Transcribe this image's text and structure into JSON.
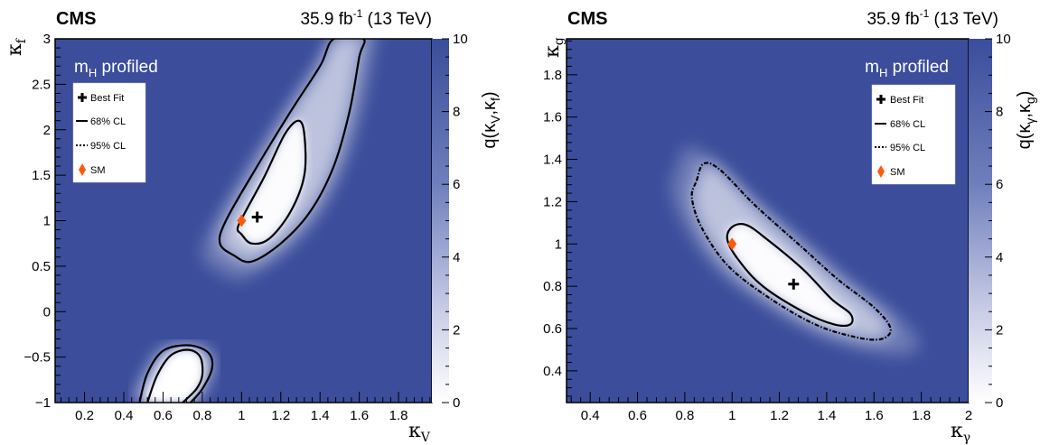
{
  "figure": {
    "experiment": "CMS",
    "lumi_prefix": "35.9 fb",
    "lumi_exp": "-1",
    "lumi_suffix": " (13 TeV)",
    "profiled_prefix": "m",
    "profiled_sub": "H",
    "profiled_suffix": " profiled",
    "legend": {
      "best_fit": "Best Fit",
      "cl68": "68% CL",
      "cl95": "95% CL",
      "sm": "SM"
    },
    "colors": {
      "background": "#3b4d9b",
      "sm_marker": "#ff5a0a",
      "contour": "#000000"
    }
  },
  "chart_data": [
    {
      "type": "heatmap",
      "xlabel_sym": "κ",
      "xlabel_sub": "V",
      "ylabel_sym": "κ",
      "ylabel_sub": "f",
      "zlabel_prefix": "q(κ",
      "zlabel_sub1": "V",
      "zlabel_mid": ",κ",
      "zlabel_sub2": "f",
      "zlabel_suffix": ")",
      "xlim": [
        0.05,
        1.97
      ],
      "ylim": [
        -1,
        3
      ],
      "zlim": [
        0,
        10
      ],
      "xticks": [
        "0.2",
        "0.4",
        "0.6",
        "0.8",
        "1",
        "1.2",
        "1.4",
        "1.6",
        "1.8"
      ],
      "yticks": [
        "−1",
        "−0.5",
        "0",
        "0.5",
        "1",
        "1.5",
        "2",
        "2.5",
        "3"
      ],
      "zticks": [
        "0",
        "2",
        "4",
        "6",
        "8",
        "10"
      ],
      "best_fit": [
        1.08,
        1.04
      ],
      "sm": [
        1.0,
        1.0
      ],
      "contour_68": [
        [
          1.0,
          0.85
        ],
        [
          1.05,
          0.75
        ],
        [
          1.14,
          0.8
        ],
        [
          1.25,
          1.1
        ],
        [
          1.32,
          1.5
        ],
        [
          1.32,
          1.95
        ],
        [
          1.29,
          2.1
        ],
        [
          1.22,
          1.95
        ],
        [
          1.12,
          1.5
        ],
        [
          1.02,
          1.1
        ],
        [
          0.98,
          0.92
        ],
        [
          1.0,
          0.85
        ]
      ],
      "contour_95": [
        [
          0.96,
          0.62
        ],
        [
          1.05,
          0.55
        ],
        [
          1.2,
          0.75
        ],
        [
          1.35,
          1.1
        ],
        [
          1.47,
          1.6
        ],
        [
          1.55,
          2.2
        ],
        [
          1.6,
          2.8
        ],
        [
          1.62,
          3.0
        ],
        [
          1.47,
          3.0
        ],
        [
          1.4,
          2.7
        ],
        [
          1.25,
          2.2
        ],
        [
          1.08,
          1.6
        ],
        [
          0.92,
          1.0
        ],
        [
          0.89,
          0.75
        ],
        [
          0.96,
          0.62
        ]
      ],
      "contour_68_lower": [
        [
          0.52,
          -1.0
        ],
        [
          0.57,
          -0.7
        ],
        [
          0.64,
          -0.48
        ],
        [
          0.73,
          -0.42
        ],
        [
          0.79,
          -0.5
        ],
        [
          0.8,
          -0.7
        ],
        [
          0.77,
          -0.85
        ],
        [
          0.7,
          -1.0
        ]
      ],
      "contour_95_lower": [
        [
          0.48,
          -1.0
        ],
        [
          0.52,
          -0.68
        ],
        [
          0.6,
          -0.43
        ],
        [
          0.73,
          -0.37
        ],
        [
          0.83,
          -0.45
        ],
        [
          0.85,
          -0.62
        ],
        [
          0.8,
          -0.85
        ],
        [
          0.74,
          -1.0
        ]
      ]
    },
    {
      "type": "heatmap",
      "xlabel_sym": "κ",
      "xlabel_sub": "γ",
      "ylabel_sym": "κ",
      "ylabel_sub": "g",
      "zlabel_prefix": "q(κ",
      "zlabel_sub1": "γ",
      "zlabel_mid": ",κ",
      "zlabel_sub2": "g",
      "zlabel_suffix": ")",
      "xlim": [
        0.3,
        2.0
      ],
      "ylim": [
        0.25,
        1.97
      ],
      "zlim": [
        0,
        10
      ],
      "xticks": [
        "0.4",
        "0.6",
        "0.8",
        "1",
        "1.2",
        "1.4",
        "1.6",
        "1.8",
        "2"
      ],
      "yticks": [
        "0.4",
        "0.6",
        "0.8",
        "1",
        "1.2",
        "1.4",
        "1.6",
        "1.8"
      ],
      "zticks": [
        "0",
        "2",
        "4",
        "6",
        "8",
        "10"
      ],
      "best_fit": [
        1.26,
        0.81
      ],
      "sm": [
        1.0,
        1.0
      ],
      "contour_68": [
        [
          0.98,
          1.02
        ],
        [
          1.0,
          1.08
        ],
        [
          1.06,
          1.09
        ],
        [
          1.15,
          1.02
        ],
        [
          1.3,
          0.88
        ],
        [
          1.42,
          0.74
        ],
        [
          1.5,
          0.67
        ],
        [
          1.5,
          0.62
        ],
        [
          1.43,
          0.62
        ],
        [
          1.3,
          0.68
        ],
        [
          1.13,
          0.8
        ],
        [
          1.03,
          0.92
        ],
        [
          0.98,
          1.02
        ]
      ],
      "contour_95": [
        [
          0.85,
          1.3
        ],
        [
          0.88,
          1.38
        ],
        [
          0.95,
          1.35
        ],
        [
          1.1,
          1.18
        ],
        [
          1.3,
          0.98
        ],
        [
          1.45,
          0.83
        ],
        [
          1.6,
          0.7
        ],
        [
          1.67,
          0.6
        ],
        [
          1.63,
          0.55
        ],
        [
          1.52,
          0.56
        ],
        [
          1.35,
          0.62
        ],
        [
          1.15,
          0.75
        ],
        [
          0.98,
          0.9
        ],
        [
          0.87,
          1.08
        ],
        [
          0.83,
          1.22
        ],
        [
          0.85,
          1.3
        ]
      ]
    }
  ]
}
